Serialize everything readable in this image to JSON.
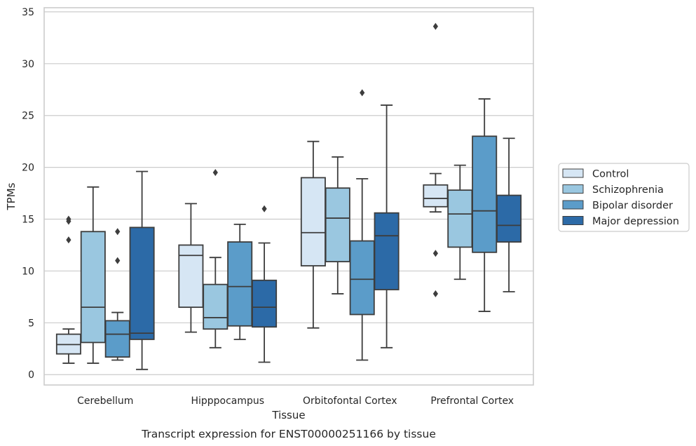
{
  "caption": "Transcript expression for ENST00000251166 by tissue",
  "chart_data": {
    "type": "box",
    "title": "",
    "xlabel": "Tissue",
    "ylabel": "TPMs",
    "ylim": [
      -1,
      35.4
    ],
    "yticks": [
      0,
      5,
      10,
      15,
      20,
      25,
      30,
      35
    ],
    "grid": "horizontal",
    "legend_position": "right",
    "categories": [
      "Cerebellum",
      "Hipppocampus",
      "Orbitofontal Cortex",
      "Prefrontal Cortex"
    ],
    "series": [
      {
        "name": "Control",
        "color": "#d6e6f4",
        "boxes": [
          {
            "q1": 2.0,
            "median": 2.9,
            "q3": 3.9,
            "whisker_low": 1.1,
            "whisker_high": 4.4,
            "outliers": [
              15.0,
              14.8,
              13.0
            ]
          },
          {
            "q1": 6.5,
            "median": 11.5,
            "q3": 12.5,
            "whisker_low": 4.1,
            "whisker_high": 16.5,
            "outliers": []
          },
          {
            "q1": 10.5,
            "median": 13.7,
            "q3": 19.0,
            "whisker_low": 4.5,
            "whisker_high": 22.5,
            "outliers": []
          },
          {
            "q1": 16.2,
            "median": 17.0,
            "q3": 18.3,
            "whisker_low": 15.7,
            "whisker_high": 19.4,
            "outliers": [
              33.6,
              11.7,
              7.8
            ]
          }
        ]
      },
      {
        "name": "Schizophrenia",
        "color": "#9ac7e0",
        "boxes": [
          {
            "q1": 3.1,
            "median": 6.5,
            "q3": 13.8,
            "whisker_low": 1.1,
            "whisker_high": 18.1,
            "outliers": []
          },
          {
            "q1": 4.4,
            "median": 5.5,
            "q3": 8.7,
            "whisker_low": 2.6,
            "whisker_high": 11.3,
            "outliers": [
              19.5
            ]
          },
          {
            "q1": 10.9,
            "median": 15.1,
            "q3": 18.0,
            "whisker_low": 7.8,
            "whisker_high": 21.0,
            "outliers": []
          },
          {
            "q1": 12.3,
            "median": 15.5,
            "q3": 17.8,
            "whisker_low": 9.2,
            "whisker_high": 20.2,
            "outliers": []
          }
        ]
      },
      {
        "name": "Bipolar disorder",
        "color": "#5b9cc9",
        "boxes": [
          {
            "q1": 1.7,
            "median": 3.9,
            "q3": 5.2,
            "whisker_low": 1.4,
            "whisker_high": 6.0,
            "outliers": [
              13.8,
              11.0
            ]
          },
          {
            "q1": 4.7,
            "median": 8.5,
            "q3": 12.8,
            "whisker_low": 3.4,
            "whisker_high": 14.5,
            "outliers": []
          },
          {
            "q1": 5.8,
            "median": 9.2,
            "q3": 12.9,
            "whisker_low": 1.4,
            "whisker_high": 18.9,
            "outliers": [
              27.2
            ]
          },
          {
            "q1": 11.8,
            "median": 15.8,
            "q3": 23.0,
            "whisker_low": 6.1,
            "whisker_high": 26.6,
            "outliers": []
          }
        ]
      },
      {
        "name": "Major depression",
        "color": "#2c6aa7",
        "boxes": [
          {
            "q1": 3.4,
            "median": 4.0,
            "q3": 14.2,
            "whisker_low": 0.5,
            "whisker_high": 19.6,
            "outliers": []
          },
          {
            "q1": 4.6,
            "median": 6.5,
            "q3": 9.1,
            "whisker_low": 1.2,
            "whisker_high": 12.7,
            "outliers": [
              16.0
            ]
          },
          {
            "q1": 8.2,
            "median": 13.4,
            "q3": 15.6,
            "whisker_low": 2.6,
            "whisker_high": 26.0,
            "outliers": []
          },
          {
            "q1": 12.8,
            "median": 14.4,
            "q3": 17.3,
            "whisker_low": 8.0,
            "whisker_high": 22.8,
            "outliers": []
          }
        ]
      }
    ]
  }
}
